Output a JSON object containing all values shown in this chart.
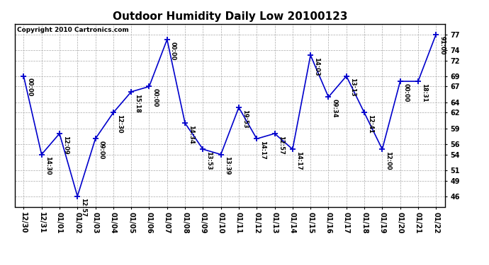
{
  "title": "Outdoor Humidity Daily Low 20100123",
  "copyright": "Copyright 2010 Cartronics.com",
  "x_labels": [
    "12/30",
    "12/31",
    "01/01",
    "01/02",
    "01/03",
    "01/04",
    "01/05",
    "01/06",
    "01/07",
    "01/08",
    "01/09",
    "01/10",
    "01/11",
    "01/12",
    "01/13",
    "01/14",
    "01/15",
    "01/16",
    "01/17",
    "01/18",
    "01/19",
    "01/20",
    "01/21",
    "01/22"
  ],
  "y_values": [
    69,
    54,
    58,
    46,
    57,
    62,
    66,
    67,
    76,
    60,
    55,
    54,
    63,
    57,
    58,
    55,
    73,
    65,
    69,
    62,
    55,
    68,
    68,
    77
  ],
  "point_labels": [
    "00:00",
    "14:30",
    "12:09",
    "12:57",
    "09:00",
    "12:30",
    "15:18",
    "00:00",
    "00:00",
    "14:34",
    "13:53",
    "13:39",
    "19:53",
    "14:17",
    "12:57",
    "14:17",
    "14:03",
    "09:34",
    "13:13",
    "12:41",
    "12:00",
    "00:00",
    "18:31",
    "91:00"
  ],
  "y_ticks": [
    46,
    49,
    51,
    54,
    56,
    59,
    62,
    64,
    67,
    69,
    72,
    74,
    77
  ],
  "ylim": [
    44,
    79
  ],
  "line_color": "#0000cc",
  "marker_color": "#0000cc",
  "bg_color": "#ffffff",
  "grid_color": "#aaaaaa",
  "title_fontsize": 11,
  "tick_fontsize": 7,
  "annot_fontsize": 6,
  "copyright_fontsize": 6.5
}
